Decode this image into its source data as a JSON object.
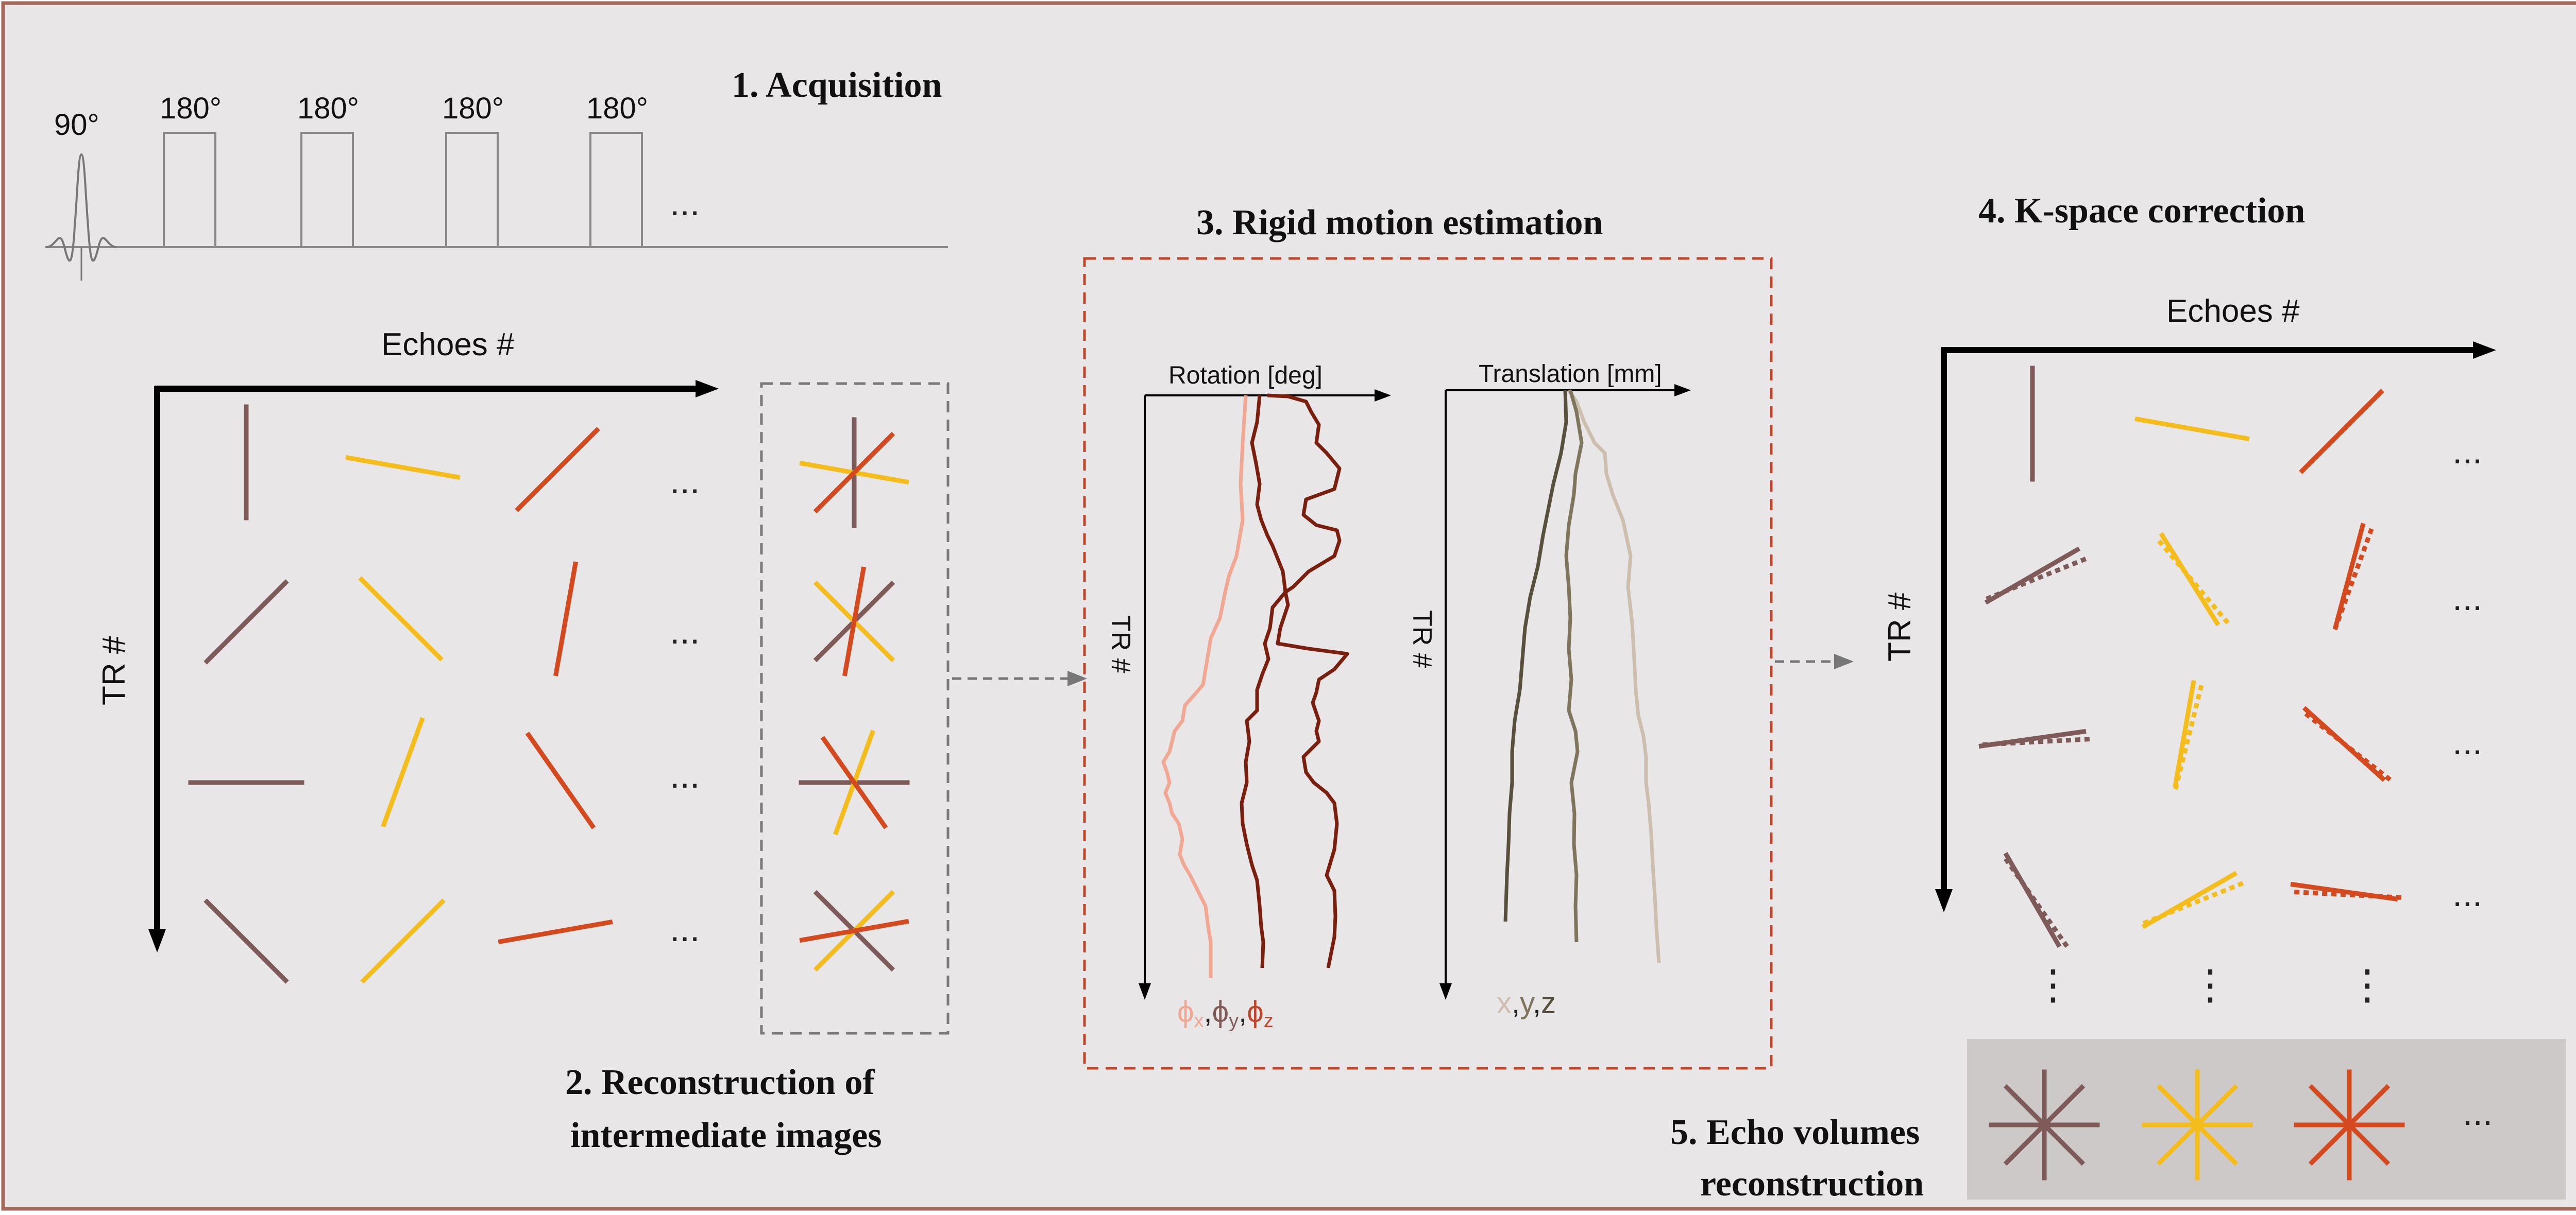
{
  "colors": {
    "background": "#e8e6e6",
    "frame": "#a56a5c",
    "brown": "#7e5a58",
    "yellow": "#f5bd1c",
    "orange": "#d44a1e",
    "dark_red": "#7a1e0e",
    "salmon": "#f2a792",
    "dark_olive": "#57503c",
    "olive": "#7f755d",
    "beige": "#cdbfae",
    "dashed_box": "#7a7a7a",
    "red_dashed_box": "#c2452a",
    "echo_panel": "#cdc9c8"
  },
  "acquisition": {
    "title": "1. Acquisition",
    "excitation_label": "90°",
    "refocus_labels": [
      "180°",
      "180°",
      "180°",
      "180°"
    ],
    "ellipsis": "..."
  },
  "reconstruction": {
    "title_line1": "2. Reconstruction of",
    "title_line2": "intermediate images",
    "x_axis_label": "Echoes #",
    "y_axis_label": "TR #",
    "ellipsis": "..."
  },
  "motion": {
    "title": "3. Rigid motion estimation",
    "rotation_label": "Rotation [deg]",
    "translation_label": "Translation [mm]",
    "tr_label": "TR #",
    "rotation_legend": {
      "phi": "ϕ",
      "x": "x",
      "y": "y",
      "z": "z",
      "comma": ","
    },
    "translation_legend": {
      "x": "x",
      "y": "y",
      "z": "z",
      "comma": ","
    }
  },
  "kspace": {
    "title": "4. K-space correction",
    "x_axis_label": "Echoes #",
    "y_axis_label": "TR #",
    "ellipsis": "...",
    "vertical_ellipsis": "⋮"
  },
  "echo_volumes": {
    "title_line1": "5. Echo volumes",
    "title_line2": "reconstruction",
    "ellipsis": "..."
  }
}
